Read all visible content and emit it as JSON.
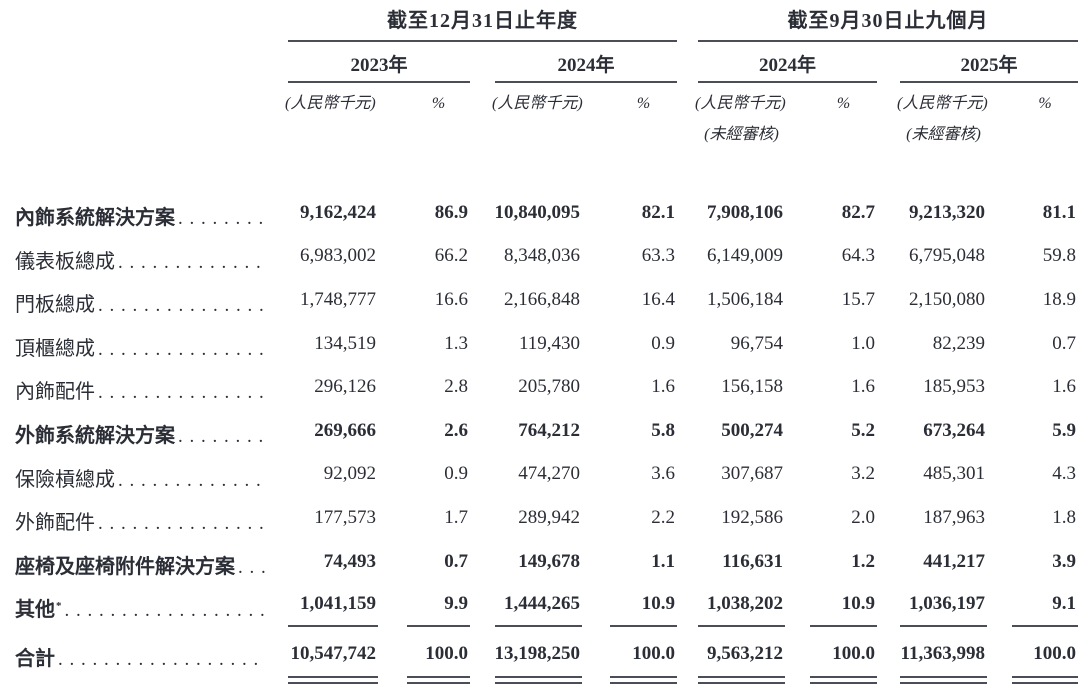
{
  "colors": {
    "ink": "#2b2e36",
    "rule": "#4b4e57",
    "paper": "#ffffff"
  },
  "table": {
    "col_groups": [
      {
        "title": "截至12月31日止年度",
        "years": [
          {
            "label": "2023年",
            "unit": "(人民幣千元)",
            "pct": "%",
            "note": ""
          },
          {
            "label": "2024年",
            "unit": "(人民幣千元)",
            "pct": "%",
            "note": ""
          }
        ]
      },
      {
        "title": "截至9月30日止九個月",
        "years": [
          {
            "label": "2024年",
            "unit": "(人民幣千元)",
            "pct": "%",
            "note": "(未經審核)"
          },
          {
            "label": "2025年",
            "unit": "(人民幣千元)",
            "pct": "%",
            "note": "(未經審核)"
          }
        ]
      }
    ],
    "rows": [
      {
        "label": "內飾系統解決方案",
        "sup": "",
        "bold": true,
        "rule": "",
        "values": [
          "9,162,424",
          "86.9",
          "10,840,095",
          "82.1",
          "7,908,106",
          "82.7",
          "9,213,320",
          "81.1"
        ]
      },
      {
        "label": "儀表板總成",
        "sup": "",
        "bold": false,
        "rule": "",
        "values": [
          "6,983,002",
          "66.2",
          "8,348,036",
          "63.3",
          "6,149,009",
          "64.3",
          "6,795,048",
          "59.8"
        ]
      },
      {
        "label": "門板總成",
        "sup": "",
        "bold": false,
        "rule": "",
        "values": [
          "1,748,777",
          "16.6",
          "2,166,848",
          "16.4",
          "1,506,184",
          "15.7",
          "2,150,080",
          "18.9"
        ]
      },
      {
        "label": "頂櫃總成",
        "sup": "",
        "bold": false,
        "rule": "",
        "values": [
          "134,519",
          "1.3",
          "119,430",
          "0.9",
          "96,754",
          "1.0",
          "82,239",
          "0.7"
        ]
      },
      {
        "label": "內飾配件",
        "sup": "",
        "bold": false,
        "rule": "",
        "values": [
          "296,126",
          "2.8",
          "205,780",
          "1.6",
          "156,158",
          "1.6",
          "185,953",
          "1.6"
        ]
      },
      {
        "label": "外飾系統解決方案",
        "sup": "",
        "bold": true,
        "rule": "",
        "values": [
          "269,666",
          "2.6",
          "764,212",
          "5.8",
          "500,274",
          "5.2",
          "673,264",
          "5.9"
        ]
      },
      {
        "label": "保險槓總成",
        "sup": "",
        "bold": false,
        "rule": "",
        "values": [
          "92,092",
          "0.9",
          "474,270",
          "3.6",
          "307,687",
          "3.2",
          "485,301",
          "4.3"
        ]
      },
      {
        "label": "外飾配件",
        "sup": "",
        "bold": false,
        "rule": "",
        "values": [
          "177,573",
          "1.7",
          "289,942",
          "2.2",
          "192,586",
          "2.0",
          "187,963",
          "1.8"
        ]
      },
      {
        "label": "座椅及座椅附件解決方案",
        "sup": "",
        "bold": true,
        "rule": "",
        "values": [
          "74,493",
          "0.7",
          "149,678",
          "1.1",
          "116,631",
          "1.2",
          "441,217",
          "3.9"
        ]
      },
      {
        "label": "其他",
        "sup": "*",
        "bold": true,
        "rule": "single",
        "values": [
          "1,041,159",
          "9.9",
          "1,444,265",
          "10.9",
          "1,038,202",
          "10.9",
          "1,036,197",
          "9.1"
        ]
      },
      {
        "label": "合計",
        "sup": "",
        "bold": true,
        "rule": "double",
        "values": [
          "10,547,742",
          "100.0",
          "13,198,250",
          "100.0",
          "9,563,212",
          "100.0",
          "11,363,998",
          "100.0"
        ]
      }
    ]
  }
}
